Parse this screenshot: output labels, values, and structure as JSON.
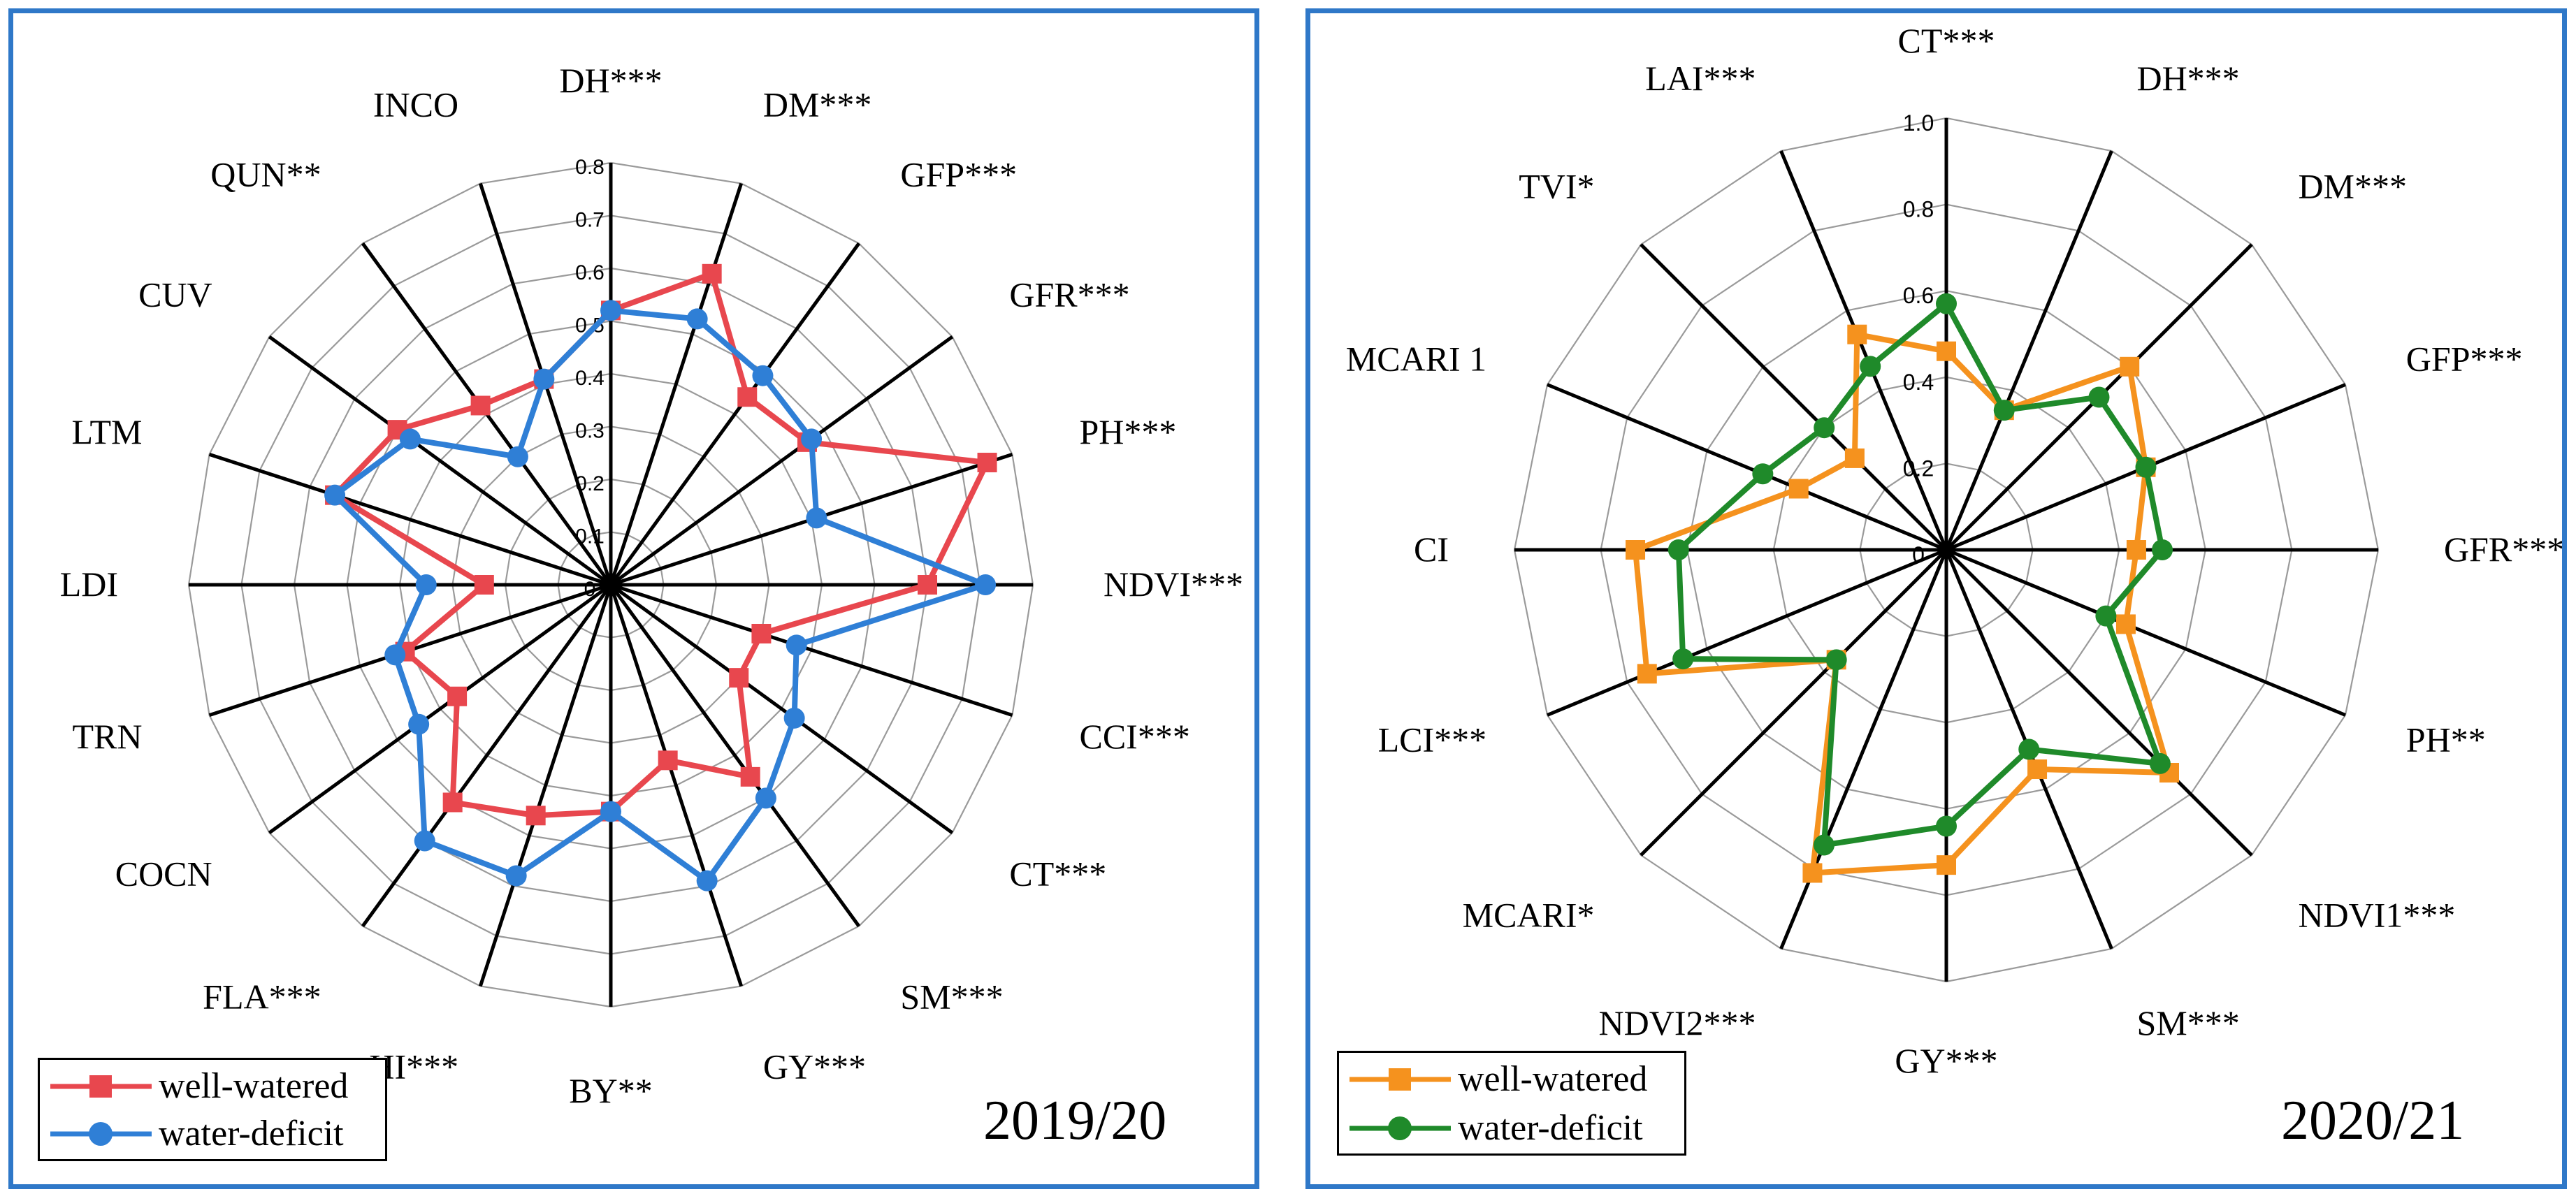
{
  "chart_data": [
    {
      "type": "radar",
      "year_label": "2019/20",
      "axis_range": [
        0,
        0.8
      ],
      "ticks": [
        "0",
        "0.1",
        "0.2",
        "0.3",
        "0.4",
        "0.5",
        "0.6",
        "0.7",
        "0.8"
      ],
      "categories": [
        "DH***",
        "DM***",
        "GFP***",
        "GFR***",
        "PH***",
        "NDVI***",
        "CCI***",
        "CT***",
        "SM***",
        "GY***",
        "BY**",
        "HI***",
        "FLA***",
        "COCN",
        "TRN",
        "LDI",
        "LTM",
        "CUV",
        "QUN**",
        "INCO"
      ],
      "legend_position": "bottom-left",
      "series": [
        {
          "name": "well-watered",
          "color": "#e8474e",
          "marker": "square",
          "values": [
            0.52,
            0.62,
            0.44,
            0.46,
            0.75,
            0.6,
            0.3,
            0.3,
            0.45,
            0.35,
            0.43,
            0.46,
            0.51,
            0.36,
            0.41,
            0.24,
            0.55,
            0.5,
            0.42,
            0.41
          ]
        },
        {
          "name": "water-deficit",
          "color": "#2f7fd6",
          "marker": "circle",
          "values": [
            0.52,
            0.53,
            0.49,
            0.47,
            0.41,
            0.71,
            0.37,
            0.43,
            0.5,
            0.59,
            0.43,
            0.58,
            0.6,
            0.45,
            0.43,
            0.35,
            0.55,
            0.47,
            0.3,
            0.41
          ]
        }
      ]
    },
    {
      "type": "radar",
      "year_label": "2020/21",
      "axis_range": [
        0,
        1.0
      ],
      "ticks": [
        "0",
        "0.2",
        "0.4",
        "0.6",
        "0.8",
        "1.0"
      ],
      "categories": [
        "CT***",
        "DH***",
        "DM***",
        "GFP***",
        "GFR***",
        "PH**",
        "NDVI1***",
        "SM***",
        "GY***",
        "NDVI2***",
        "MCARI*",
        "LCI***",
        "CI",
        "MCARI 1",
        "TVI*",
        "LAI***"
      ],
      "legend_position": "bottom-left",
      "series": [
        {
          "name": "well-watered",
          "color": "#f5921e",
          "marker": "square",
          "values": [
            0.46,
            0.35,
            0.6,
            0.5,
            0.44,
            0.45,
            0.73,
            0.55,
            0.73,
            0.81,
            0.36,
            0.75,
            0.72,
            0.37,
            0.3,
            0.54
          ]
        },
        {
          "name": "water-deficit",
          "color": "#1f8a2a",
          "marker": "circle",
          "values": [
            0.57,
            0.35,
            0.5,
            0.5,
            0.5,
            0.4,
            0.7,
            0.5,
            0.64,
            0.74,
            0.36,
            0.66,
            0.62,
            0.46,
            0.4,
            0.46
          ]
        }
      ]
    }
  ]
}
